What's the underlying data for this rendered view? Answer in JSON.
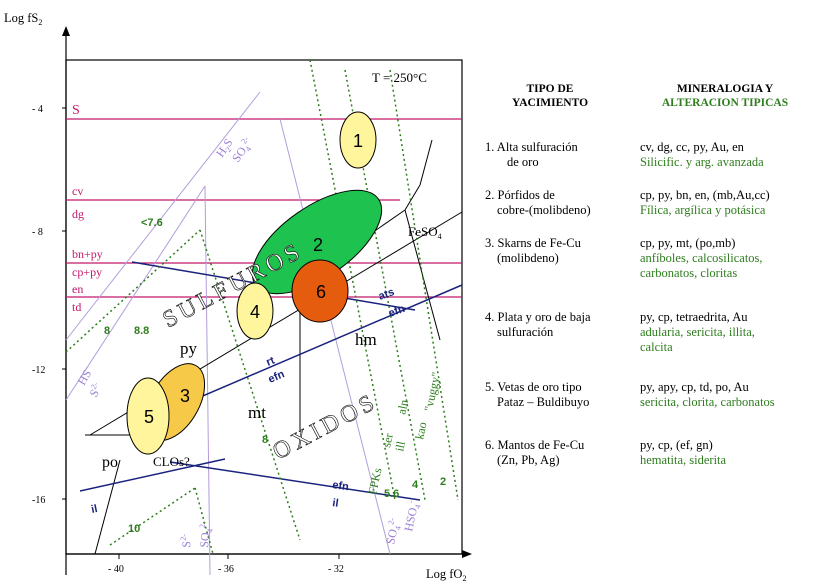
{
  "diagram": {
    "title": "T = 250°C",
    "y_axis_label": "Log  fS",
    "y_axis_sub": "2",
    "x_axis_label": "Log  fO",
    "x_axis_sub": "2",
    "y_ticks": [
      "- 4",
      "- 8",
      "-12",
      "-16"
    ],
    "x_ticks": [
      "- 40",
      "- 36",
      "- 32"
    ],
    "region_labels": {
      "sulfuros": "SULFUROS",
      "oxidos": "OXIDOS"
    },
    "mineral_lines": [
      "S",
      "cv",
      "dg",
      "bn+py",
      "cp+py",
      "en",
      "td"
    ],
    "field_labels": {
      "py": "py",
      "hm": "hm",
      "mt": "mt",
      "po": "po",
      "clos": "CLOs?",
      "feso4": "FeSO",
      "feso4_sub": "4"
    },
    "species_labels": {
      "h2s": "H",
      "h2s_sub": "2",
      "h2s_tail": "S",
      "so4": "SO",
      "so4_sub": "4",
      "so4_sup": "2-",
      "hs": "HS",
      "hs_sup": "-",
      "s2": "S",
      "s2_sup": "2-",
      "hso4": "HSO",
      "hso4_sub": "4",
      "hso4_sup": "-"
    },
    "ph_labels": [
      "<7.6",
      "8",
      "8.8",
      "8",
      "5.6",
      "4",
      "2",
      "10"
    ],
    "blue_labels": [
      "ats",
      "efn",
      "rt",
      "efn",
      "efn",
      "il",
      "il"
    ],
    "alteration_labels": [
      "\"vuggy\"",
      "aln",
      "kao",
      "ser",
      "ill",
      "FPKs"
    ],
    "deposits": [
      "1",
      "2",
      "3",
      "4",
      "5",
      "6"
    ],
    "colors": {
      "pink_line": "#c2186b",
      "blue_line": "#1a237e",
      "green_dotted": "#2e7d1e",
      "lavender": "#9b7fd4",
      "yellow_fill": "#fff59d",
      "orange_yellow_fill": "#f7c948",
      "green_fill": "#1ec24f",
      "orange_fill": "#e65c0f"
    }
  },
  "table": {
    "header_type": [
      "TIPO DE",
      "YACIMIENTO"
    ],
    "header_min": [
      "MINERALOGIA Y"
    ],
    "header_alt": "ALTERACION TIPICAS",
    "rows": [
      {
        "type": [
          "1. Alta sulfuración",
          "    de oro"
        ],
        "mineral": [
          "cv, dg, cc, py, Au, en"
        ],
        "alteration": [
          "Silicific. y arg. avanzada"
        ]
      },
      {
        "type": [
          "2. Pórfidos de",
          "cobre-(molibdeno)"
        ],
        "mineral": [
          "cp, py, bn, en, (mb,Au,cc)"
        ],
        "alteration": [
          "Fílica, argílica y potásica"
        ]
      },
      {
        "type": [
          "3. Skarns de Fe-Cu",
          "  (molibdeno)"
        ],
        "mineral": [
          "cp, py, mt, (po,mb)"
        ],
        "alteration": [
          "anfíboles, calcosilicatos,",
          "carbonatos, cloritas"
        ]
      },
      {
        "type": [
          "4. Plata y oro de baja",
          "   sulfuración"
        ],
        "mineral": [
          "py, cp, tetraedrita, Au"
        ],
        "alteration": [
          "adularia, sericita, illita,",
          "calcita"
        ]
      },
      {
        "type": [
          "5. Vetas de oro tipo",
          "  Pataz – Buldibuyo"
        ],
        "mineral": [
          "py, apy, cp, td, po, Au"
        ],
        "alteration": [
          "sericita, clorita, carbonatos"
        ]
      },
      {
        "type": [
          "6. Mantos de Fe-Cu",
          "  (Zn, Pb, Ag)"
        ],
        "mineral": [
          "py, cp, (ef, gn)"
        ],
        "alteration": [
          "hematita, siderita"
        ]
      }
    ]
  }
}
